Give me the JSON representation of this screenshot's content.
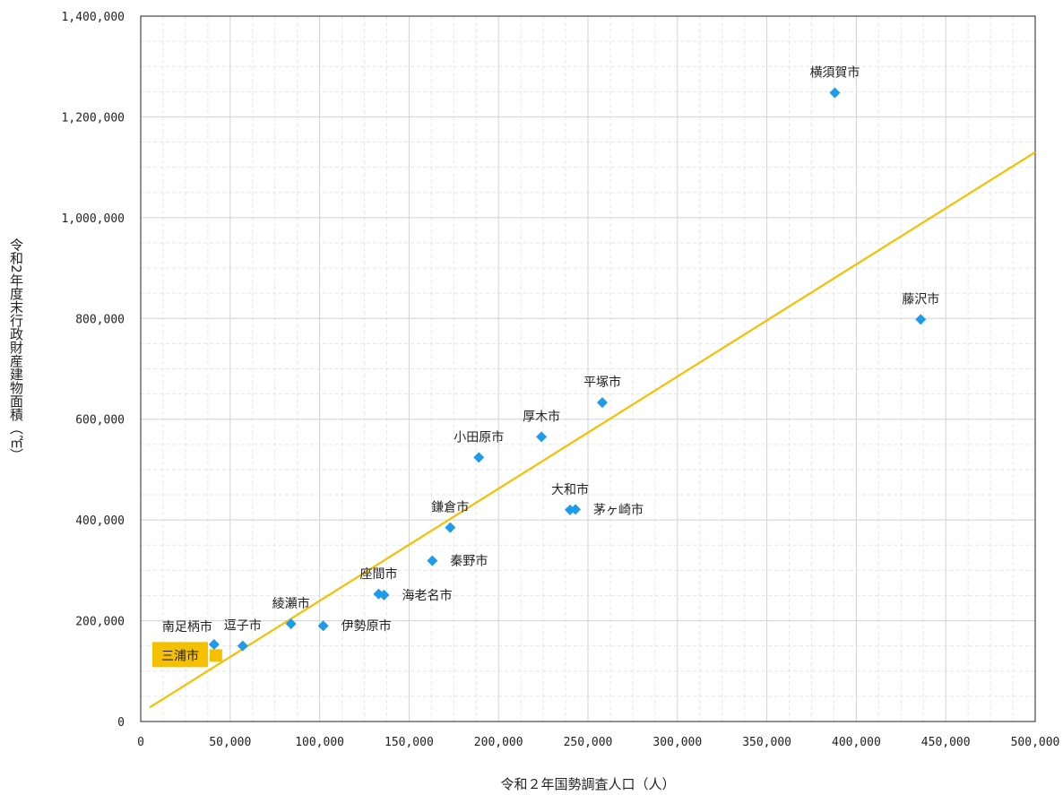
{
  "chart_data": {
    "type": "scatter",
    "xlabel": "令和２年国勢調査人口（人）",
    "ylabel": "令和2年度末行政財産建物面積（㎡）",
    "xlim": [
      0,
      500000
    ],
    "ylim": [
      0,
      1400000
    ],
    "x_ticks": [
      0,
      50000,
      100000,
      150000,
      200000,
      250000,
      300000,
      350000,
      400000,
      450000,
      500000
    ],
    "y_ticks": [
      0,
      200000,
      400000,
      600000,
      800000,
      1000000,
      1200000,
      1400000
    ],
    "x_tick_labels": [
      "0",
      "50,000",
      "100,000",
      "150,000",
      "200,000",
      "250,000",
      "300,000",
      "350,000",
      "400,000",
      "450,000",
      "500,000"
    ],
    "y_tick_labels": [
      "0",
      "200,000",
      "400,000",
      "600,000",
      "800,000",
      "1,000,000",
      "1,200,000",
      "1,400,000"
    ],
    "grid": true,
    "colors": {
      "points": "#1E9BEA",
      "trend": "#F5C000",
      "highlight": "#F5C000"
    },
    "points": [
      {
        "name": "横須賀市",
        "x": 388000,
        "y": 1248000,
        "label_pos": "above"
      },
      {
        "name": "藤沢市",
        "x": 436000,
        "y": 798000,
        "label_pos": "above"
      },
      {
        "name": "平塚市",
        "x": 258000,
        "y": 633000,
        "label_pos": "above"
      },
      {
        "name": "厚木市",
        "x": 224000,
        "y": 565000,
        "label_pos": "above"
      },
      {
        "name": "小田原市",
        "x": 189000,
        "y": 524000,
        "label_pos": "above"
      },
      {
        "name": "大和市",
        "x": 240000,
        "y": 420000,
        "label_pos": "above"
      },
      {
        "name": "茅ヶ崎市",
        "x": 243000,
        "y": 421000,
        "label_pos": "right"
      },
      {
        "name": "鎌倉市",
        "x": 173000,
        "y": 385000,
        "label_pos": "above"
      },
      {
        "name": "秦野市",
        "x": 163000,
        "y": 319000,
        "label_pos": "right"
      },
      {
        "name": "座間市",
        "x": 133000,
        "y": 253000,
        "label_pos": "above"
      },
      {
        "name": "海老名市",
        "x": 136000,
        "y": 251000,
        "label_pos": "right"
      },
      {
        "name": "綾瀬市",
        "x": 84000,
        "y": 194000,
        "label_pos": "above"
      },
      {
        "name": "伊勢原市",
        "x": 102000,
        "y": 190000,
        "label_pos": "right"
      },
      {
        "name": "南足柄市",
        "x": 41000,
        "y": 153000,
        "label_pos": "above-left"
      },
      {
        "name": "逗子市",
        "x": 57000,
        "y": 150000,
        "label_pos": "above"
      }
    ],
    "highlight": {
      "name": "三浦市",
      "x": 42000,
      "y": 131000
    },
    "trendline": {
      "x": [
        5000,
        500000
      ],
      "y": [
        28000,
        1130000
      ]
    }
  }
}
